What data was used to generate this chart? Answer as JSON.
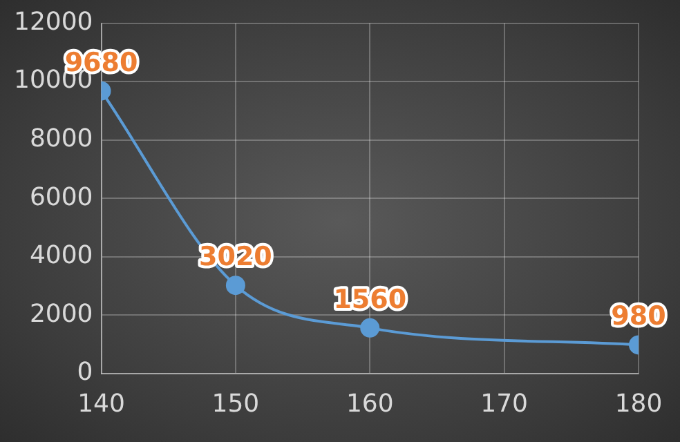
{
  "chart_data": {
    "type": "line",
    "x": [
      140,
      150,
      160,
      180
    ],
    "series": [
      {
        "color": "#5b9bd5",
        "values": [
          9680,
          3020,
          1560,
          980
        ]
      }
    ],
    "xlim": [
      140,
      180
    ],
    "xticks": [
      140,
      150,
      160,
      170,
      180
    ],
    "ylim": [
      0,
      12000
    ],
    "yticks": [
      0,
      2000,
      4000,
      6000,
      8000,
      10000,
      12000
    ],
    "grid": true,
    "legend": false,
    "marker": "circle",
    "line_style": "solid",
    "data_labels": true
  }
}
